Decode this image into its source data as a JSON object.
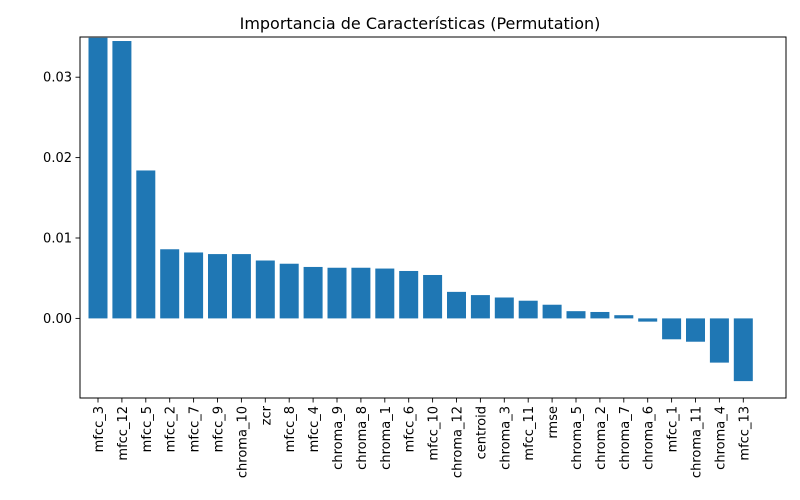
{
  "chart_data": {
    "type": "bar",
    "title": "Importancia de Características (Permutation)",
    "xlabel": "",
    "ylabel": "",
    "categories": [
      "mfcc_3",
      "mfcc_12",
      "mfcc_5",
      "mfcc_2",
      "mfcc_7",
      "mfcc_9",
      "chroma_10",
      "zcr",
      "mfcc_8",
      "mfcc_4",
      "chroma_9",
      "chroma_8",
      "chroma_1",
      "mfcc_6",
      "mfcc_10",
      "chroma_12",
      "centroid",
      "chroma_3",
      "mfcc_11",
      "rmse",
      "chroma_5",
      "chroma_2",
      "chroma_7",
      "chroma_6",
      "mfcc_1",
      "chroma_11",
      "chroma_4",
      "mfcc_13"
    ],
    "values": [
      0.0349,
      0.0345,
      0.0184,
      0.0086,
      0.0082,
      0.008,
      0.008,
      0.0072,
      0.0068,
      0.0064,
      0.0063,
      0.0063,
      0.0062,
      0.0059,
      0.0054,
      0.0033,
      0.0029,
      0.0026,
      0.0022,
      0.0017,
      0.0009,
      0.0008,
      0.0004,
      -0.0004,
      -0.0026,
      -0.0029,
      -0.0055,
      -0.0078
    ],
    "yticks": [
      0.0,
      0.01,
      0.02,
      0.03
    ],
    "ytick_labels": [
      "0.00",
      "0.01",
      "0.02",
      "0.03"
    ],
    "ylim": [
      -0.0099,
      0.035
    ],
    "grid": false,
    "legend": "none",
    "bar_color": "#1f77b4"
  }
}
